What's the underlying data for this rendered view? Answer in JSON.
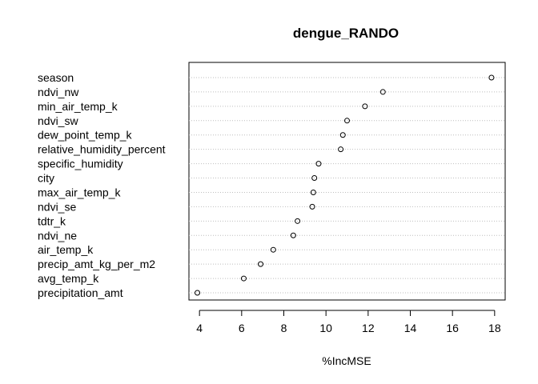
{
  "chart_data": {
    "type": "scatter",
    "subtype": "dotchart",
    "title": "dengue_RANDO",
    "xlabel": "%IncMSE",
    "ylabel": "",
    "xlim": [
      3.5,
      18.5
    ],
    "xticks": [
      4,
      6,
      8,
      10,
      12,
      14,
      16,
      18
    ],
    "grid": "dotted horizontal lines per category",
    "categories": [
      "season",
      "ndvi_nw",
      "min_air_temp_k",
      "ndvi_sw",
      "dew_point_temp_k",
      "relative_humidity_percent",
      "specific_humidity",
      "city",
      "max_air_temp_k",
      "ndvi_se",
      "tdtr_k",
      "ndvi_ne",
      "air_temp_k",
      "precip_amt_kg_per_m2",
      "avg_temp_k",
      "precipitation_amt"
    ],
    "values": [
      17.85,
      12.7,
      11.85,
      11.0,
      10.8,
      10.7,
      9.65,
      9.45,
      9.4,
      9.35,
      8.65,
      8.45,
      7.5,
      6.9,
      6.1,
      3.9
    ]
  }
}
